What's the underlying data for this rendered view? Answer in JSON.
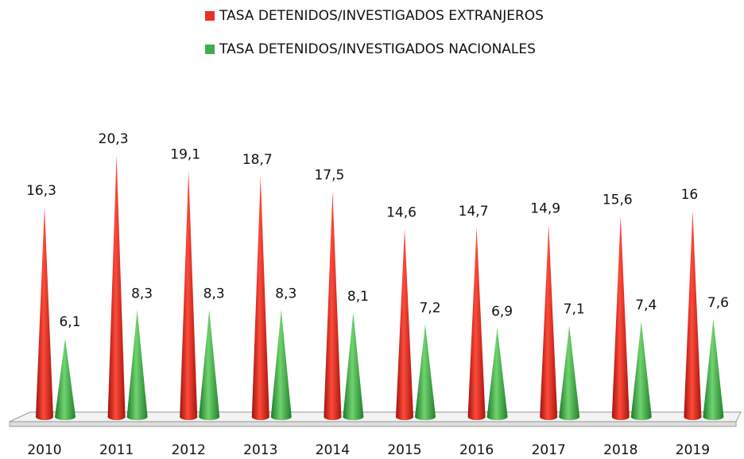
{
  "chart_data": {
    "type": "cone",
    "categories": [
      "2010",
      "2011",
      "2012",
      "2013",
      "2014",
      "2015",
      "2016",
      "2017",
      "2018",
      "2019"
    ],
    "series": [
      {
        "name": "TASA DETENIDOS/INVESTIGADOS EXTRANJEROS",
        "color": "#e8302a",
        "values": [
          16.3,
          20.3,
          19.1,
          18.7,
          17.5,
          14.6,
          14.7,
          14.9,
          15.6,
          16
        ],
        "value_labels": [
          "16,3",
          "20,3",
          "19,1",
          "18,7",
          "17,5",
          "14,6",
          "14,7",
          "14,9",
          "15,6",
          "16"
        ]
      },
      {
        "name": "TASA DETENIDOS/INVESTIGADOS NACIONALES",
        "color": "#3fae4a",
        "values": [
          6.1,
          8.3,
          8.3,
          8.3,
          8.1,
          7.2,
          6.9,
          7.1,
          7.4,
          7.6
        ],
        "value_labels": [
          "6,1",
          "8,3",
          "8,3",
          "8,3",
          "8,1",
          "7,2",
          "6,9",
          "7,1",
          "7,4",
          "7,6"
        ]
      }
    ]
  }
}
